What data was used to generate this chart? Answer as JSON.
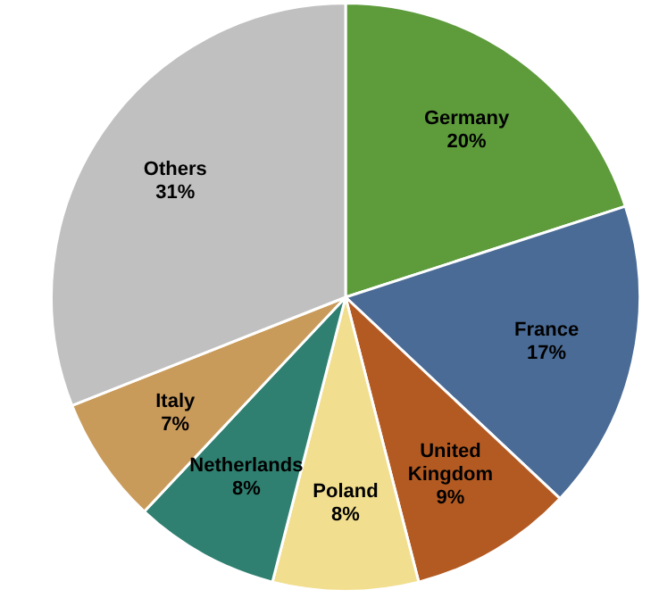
{
  "chart_data": {
    "type": "pie",
    "categories": [
      "Germany",
      "France",
      "United Kingdom",
      "Poland",
      "Netherlands",
      "Italy",
      "Others"
    ],
    "values": [
      20,
      17,
      9,
      8,
      8,
      7,
      31
    ],
    "colors": [
      "#5d9b3b",
      "#4a6b95",
      "#b35a22",
      "#f1de8e",
      "#2f8070",
      "#c99b5b",
      "#c0c0c0"
    ],
    "value_labels": [
      "20%",
      "17%",
      "9%",
      "8%",
      "8%",
      "7%",
      "31%"
    ],
    "legend": false
  }
}
